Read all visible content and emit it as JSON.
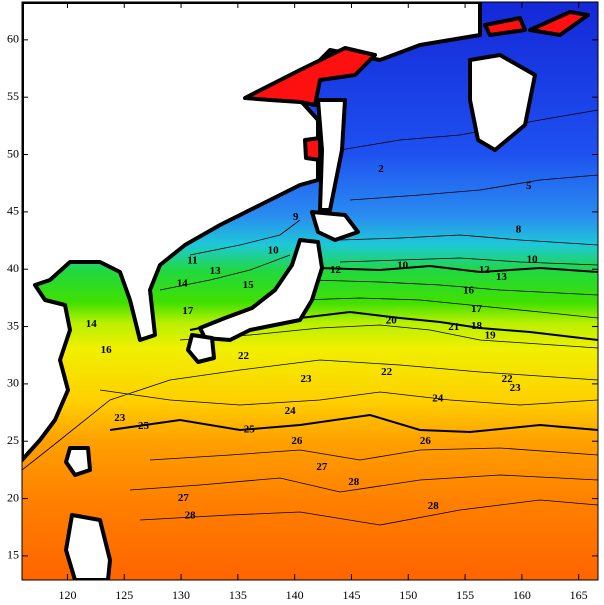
{
  "map": {
    "xlim": [
      116,
      166.7
    ],
    "ylim": [
      12.9,
      63.3
    ],
    "xticks": [
      120,
      125,
      130,
      135,
      140,
      145,
      150,
      155,
      160,
      165
    ],
    "yticks": [
      15,
      20,
      25,
      30,
      35,
      40,
      45,
      50,
      55,
      60
    ],
    "contour_labels": [
      {
        "value": 2,
        "lon": 147.6,
        "lat": 48.7
      },
      {
        "value": 5,
        "lon": 160.6,
        "lat": 47.2
      },
      {
        "value": 8,
        "lon": 159.7,
        "lat": 43.4
      },
      {
        "value": 9,
        "lon": 140.1,
        "lat": 44.5
      },
      {
        "value": 10,
        "lon": 138.1,
        "lat": 41.6
      },
      {
        "value": 10,
        "lon": 149.5,
        "lat": 40.3
      },
      {
        "value": 10,
        "lon": 160.9,
        "lat": 40.8
      },
      {
        "value": 11,
        "lon": 131,
        "lat": 40.7
      },
      {
        "value": 12,
        "lon": 143.6,
        "lat": 39.9
      },
      {
        "value": 12,
        "lon": 156.7,
        "lat": 39.9
      },
      {
        "value": 13,
        "lon": 133,
        "lat": 39.8
      },
      {
        "value": 13,
        "lon": 158.2,
        "lat": 39.3
      },
      {
        "value": 14,
        "lon": 130.1,
        "lat": 38.7
      },
      {
        "value": 14,
        "lon": 122.1,
        "lat": 35.2
      },
      {
        "value": 15,
        "lon": 135.9,
        "lat": 38.6
      },
      {
        "value": 16,
        "lon": 155.3,
        "lat": 38.1
      },
      {
        "value": 16,
        "lon": 123.4,
        "lat": 32.9
      },
      {
        "value": 17,
        "lon": 130.6,
        "lat": 36.3
      },
      {
        "value": 17,
        "lon": 156,
        "lat": 36.5
      },
      {
        "value": 18,
        "lon": 156,
        "lat": 35
      },
      {
        "value": 19,
        "lon": 157.2,
        "lat": 34.2
      },
      {
        "value": 20,
        "lon": 148.5,
        "lat": 35.5
      },
      {
        "value": 21,
        "lon": 154,
        "lat": 34.9
      },
      {
        "value": 22,
        "lon": 135.5,
        "lat": 32.4
      },
      {
        "value": 22,
        "lon": 148.1,
        "lat": 31
      },
      {
        "value": 22,
        "lon": 158.7,
        "lat": 30.4
      },
      {
        "value": 23,
        "lon": 141,
        "lat": 30.4
      },
      {
        "value": 23,
        "lon": 159.4,
        "lat": 29.6
      },
      {
        "value": 23,
        "lon": 124.6,
        "lat": 27
      },
      {
        "value": 24,
        "lon": 139.6,
        "lat": 27.6
      },
      {
        "value": 24,
        "lon": 152.6,
        "lat": 28.7
      },
      {
        "value": 25,
        "lon": 136,
        "lat": 26
      },
      {
        "value": 25,
        "lon": 126.7,
        "lat": 26.3
      },
      {
        "value": 26,
        "lon": 140.2,
        "lat": 25
      },
      {
        "value": 26,
        "lon": 151.5,
        "lat": 25
      },
      {
        "value": 27,
        "lon": 142.4,
        "lat": 22.7
      },
      {
        "value": 27,
        "lon": 130.2,
        "lat": 20
      },
      {
        "value": 28,
        "lon": 145.2,
        "lat": 21.4
      },
      {
        "value": 28,
        "lon": 130.8,
        "lat": 18.5
      },
      {
        "value": 28,
        "lon": 152.2,
        "lat": 19.3
      }
    ]
  }
}
